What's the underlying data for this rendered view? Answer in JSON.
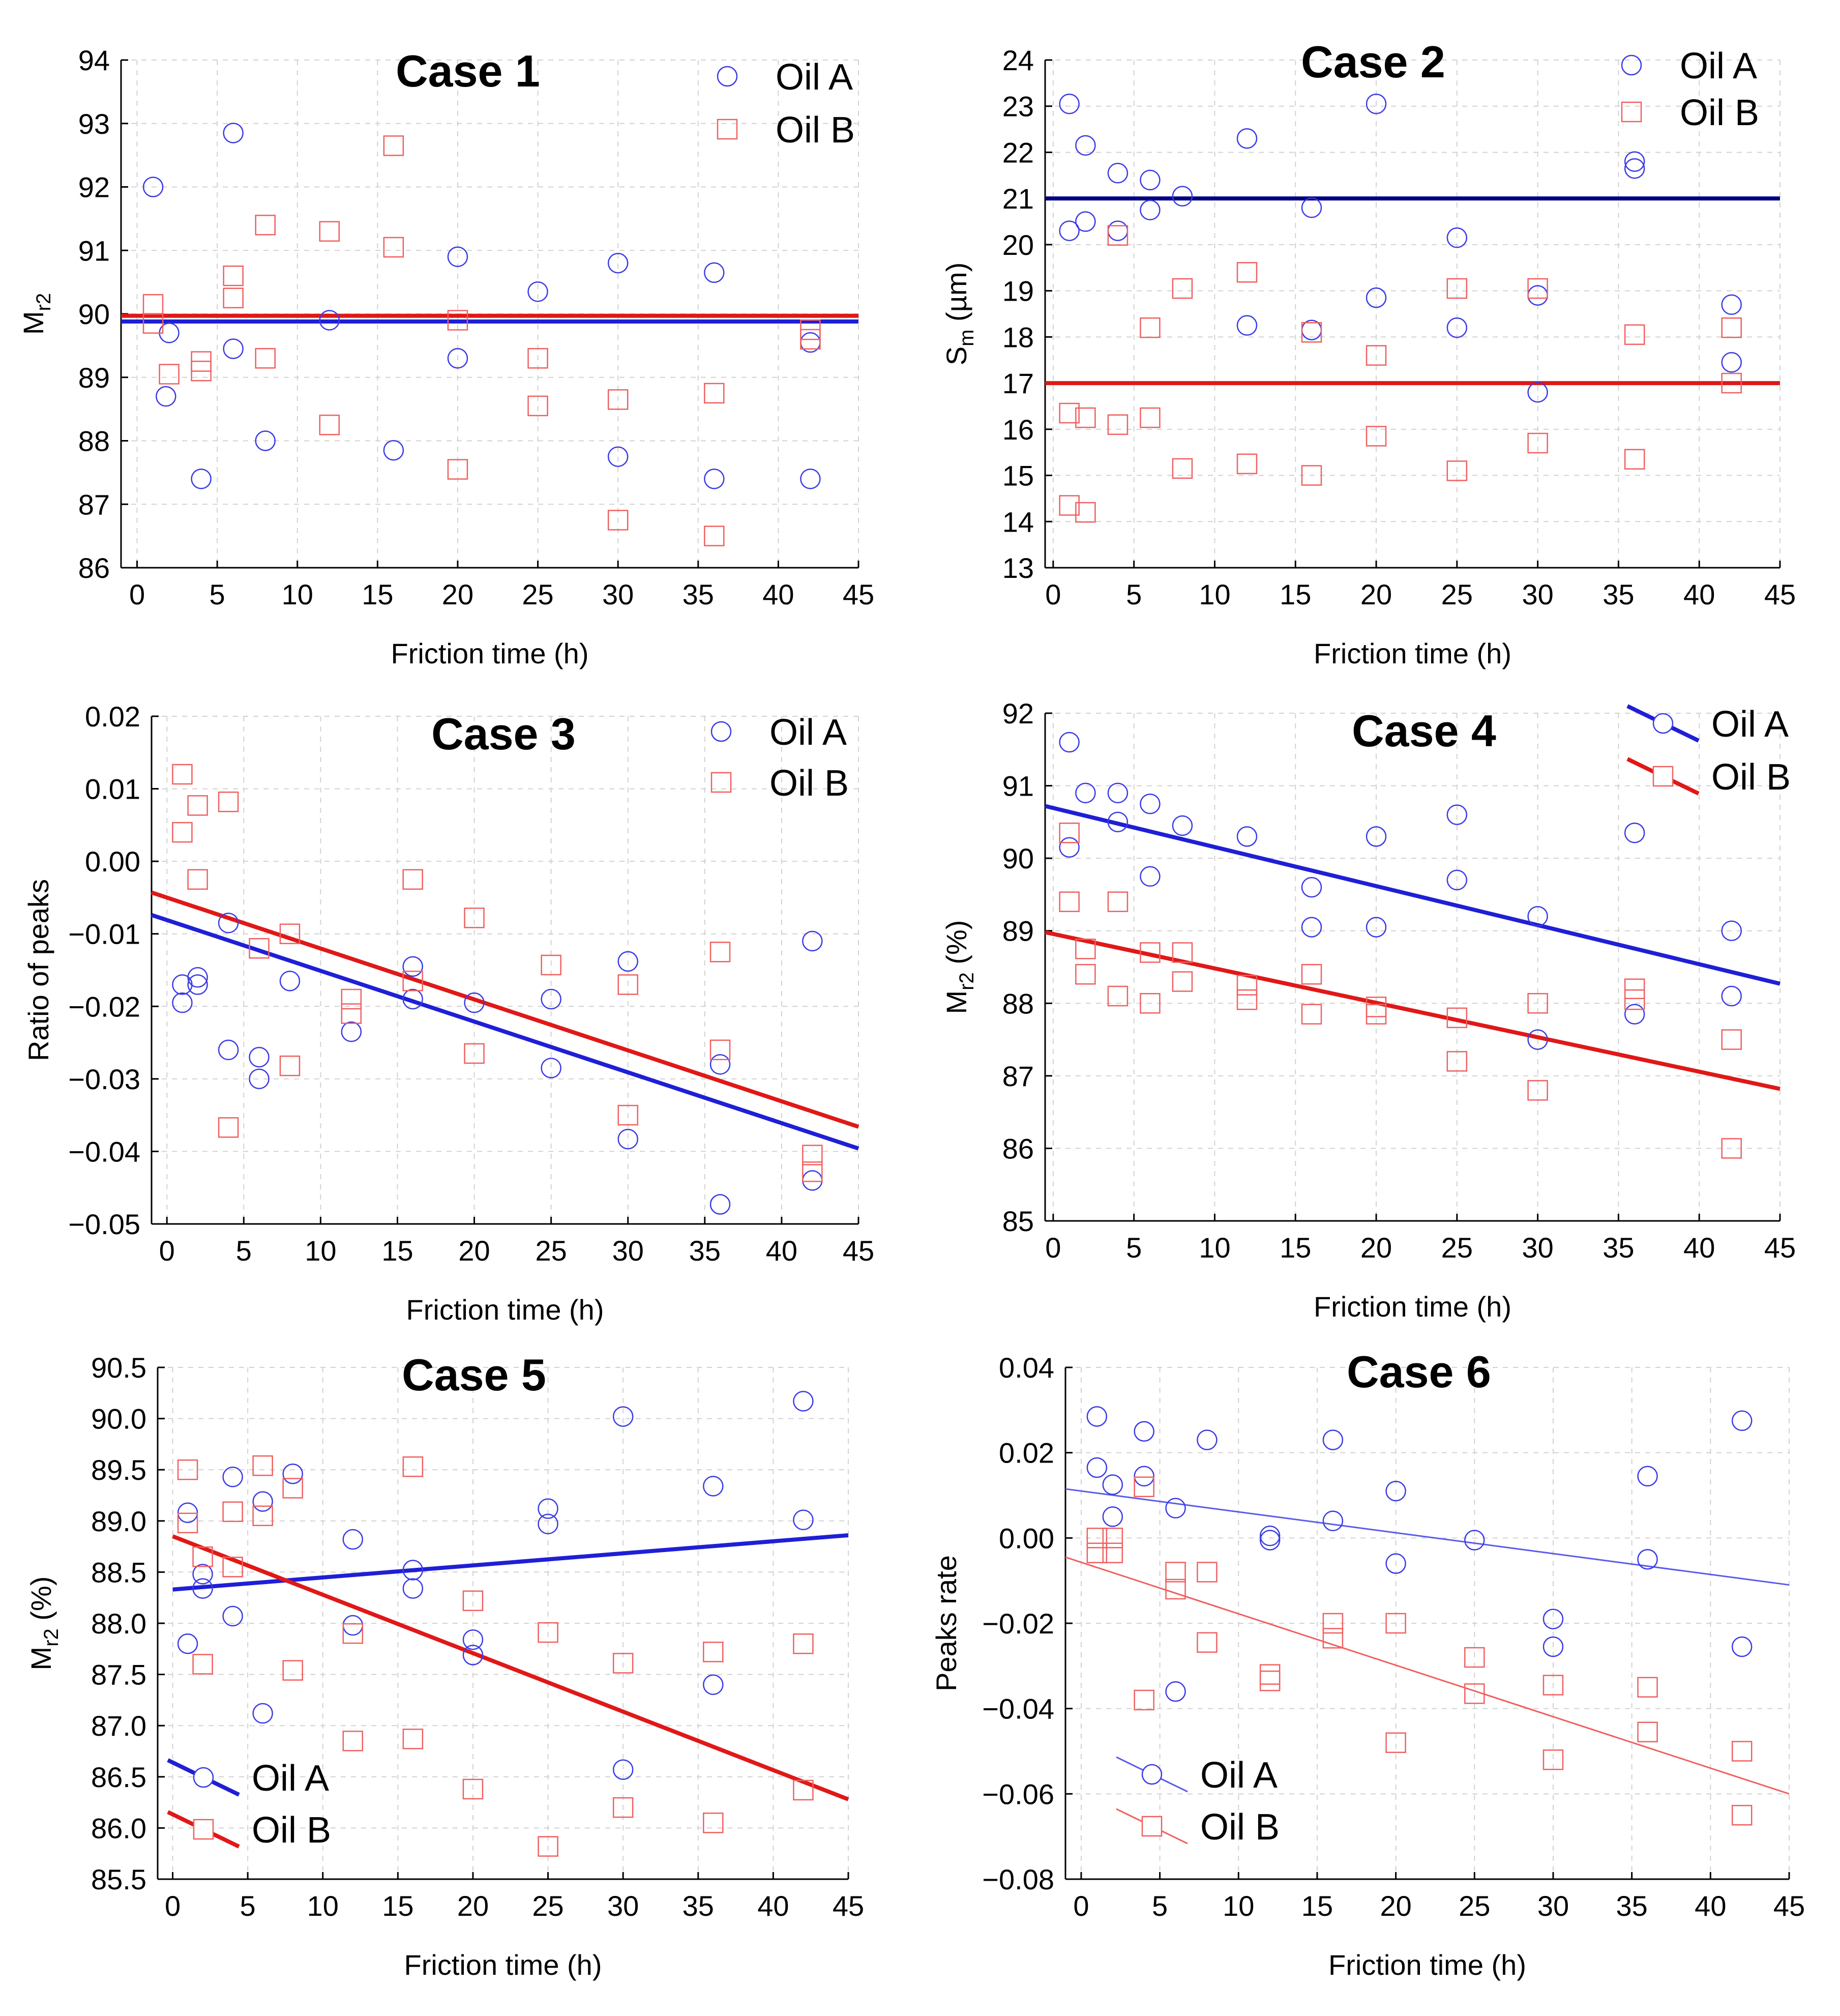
{
  "figure": {
    "panel_count": 6
  },
  "chart_data": [
    {
      "type": "scatter",
      "title": "Case 1",
      "xlabel": "Friction time (h)",
      "ylabel": "M",
      "ylabel_sub": "r2",
      "ylabel_suffix": "",
      "xlim": [
        -1,
        45
      ],
      "ylim": [
        86,
        94
      ],
      "xticks": [
        0,
        5,
        10,
        15,
        20,
        25,
        30,
        35,
        40,
        45
      ],
      "yticks": [
        86,
        87,
        88,
        89,
        90,
        91,
        92,
        93,
        94
      ],
      "ytick_decimals": 0,
      "legend_position": "top-right",
      "legend_lines": false,
      "series": [
        {
          "name": "Oil A",
          "marker": "circle",
          "color": "#3b3be6",
          "x": [
            1,
            2,
            1.8,
            4,
            6,
            6,
            8,
            12,
            16,
            20,
            20,
            25,
            30,
            30,
            36,
            36,
            42,
            42
          ],
          "y": [
            92,
            89.7,
            88.7,
            87.4,
            92.85,
            89.45,
            88,
            89.9,
            87.85,
            90.9,
            89.3,
            90.35,
            90.8,
            87.75,
            90.65,
            87.4,
            89.55,
            87.4
          ]
        },
        {
          "name": "Oil B",
          "marker": "square",
          "color": "#f06060",
          "x": [
            1,
            1,
            2,
            4,
            4,
            6,
            6,
            8,
            8,
            12,
            12,
            16,
            16,
            20,
            20,
            25,
            25,
            30,
            30,
            36,
            36,
            42,
            42
          ],
          "y": [
            90.15,
            89.85,
            89.05,
            89.25,
            89.1,
            90.6,
            90.25,
            91.4,
            89.3,
            91.3,
            88.25,
            92.65,
            91.05,
            89.9,
            87.55,
            89.3,
            88.55,
            88.65,
            86.75,
            88.75,
            86.5,
            89.75,
            89.6
          ]
        }
      ],
      "lines": [
        {
          "name": "Oil A fit",
          "color": "#1f1fd6",
          "width": 8,
          "x": [
            -1,
            45
          ],
          "y": [
            89.88,
            89.88
          ]
        },
        {
          "name": "Oil B fit",
          "color": "#e01818",
          "width": 8,
          "x": [
            -1,
            45
          ],
          "y": [
            89.97,
            89.97
          ]
        }
      ]
    },
    {
      "type": "scatter",
      "title": "Case 2",
      "xlabel": "Friction time (h)",
      "ylabel": "S",
      "ylabel_sub": "m",
      "ylabel_suffix": " (µm)",
      "xlim": [
        -0.5,
        45
      ],
      "ylim": [
        13,
        24
      ],
      "xticks": [
        0,
        5,
        10,
        15,
        20,
        25,
        30,
        35,
        40,
        45
      ],
      "yticks": [
        13,
        14,
        15,
        16,
        17,
        18,
        19,
        20,
        21,
        22,
        23,
        24
      ],
      "ytick_decimals": 0,
      "legend_position": "top-right",
      "legend_lines": false,
      "series": [
        {
          "name": "Oil A",
          "marker": "circle",
          "color": "#3b3be6",
          "x": [
            1,
            1,
            2,
            2,
            4,
            4,
            6,
            6,
            8,
            12,
            12,
            16,
            16,
            20,
            20,
            25,
            25,
            30,
            30,
            36,
            36,
            42,
            42
          ],
          "y": [
            23.05,
            20.3,
            22.15,
            20.5,
            21.55,
            20.3,
            21.4,
            20.75,
            21.05,
            22.3,
            18.25,
            20.8,
            18.15,
            23.05,
            18.85,
            20.15,
            18.2,
            18.9,
            16.8,
            21.8,
            21.65,
            18.7,
            17.45
          ]
        },
        {
          "name": "Oil B",
          "marker": "square",
          "color": "#f06060",
          "x": [
            1,
            1,
            2,
            2,
            4,
            4,
            6,
            6,
            8,
            8,
            12,
            12,
            16,
            16,
            20,
            20,
            25,
            25,
            30,
            30,
            36,
            36,
            42,
            42
          ],
          "y": [
            16.35,
            14.35,
            16.25,
            14.2,
            20.2,
            16.1,
            18.2,
            16.25,
            19.05,
            15.15,
            19.4,
            15.25,
            18.1,
            15.0,
            17.6,
            15.85,
            19.05,
            15.1,
            19.05,
            15.7,
            18.05,
            15.35,
            18.2,
            17.0
          ]
        }
      ],
      "lines": [
        {
          "name": "Oil A fit",
          "color": "#000080",
          "width": 8,
          "x": [
            -0.5,
            45
          ],
          "y": [
            21.0,
            21.0
          ]
        },
        {
          "name": "Oil B fit",
          "color": "#e01818",
          "width": 8,
          "x": [
            -0.5,
            45
          ],
          "y": [
            17.0,
            17.0
          ]
        }
      ]
    },
    {
      "type": "scatter",
      "title": "Case 3",
      "xlabel": "Friction time (h)",
      "ylabel": "Ratio of peaks",
      "ylabel_sub": "",
      "ylabel_suffix": "",
      "xlim": [
        -1,
        45
      ],
      "ylim": [
        -0.05,
        0.02
      ],
      "xticks": [
        0,
        5,
        10,
        15,
        20,
        25,
        30,
        35,
        40,
        45
      ],
      "yticks": [
        -0.05,
        -0.04,
        -0.03,
        -0.02,
        -0.01,
        0.0,
        0.01,
        0.02
      ],
      "ytick_decimals": 2,
      "legend_position": "top-right",
      "legend_lines": false,
      "series": [
        {
          "name": "Oil A",
          "marker": "circle",
          "color": "#3b3be6",
          "x": [
            1,
            1,
            2,
            2,
            4,
            4,
            6,
            6,
            8,
            12,
            16,
            16,
            20,
            25,
            25,
            30,
            30,
            36,
            36,
            42,
            42
          ],
          "y": [
            -0.017,
            -0.0195,
            -0.016,
            -0.017,
            -0.0085,
            -0.026,
            -0.027,
            -0.03,
            -0.0165,
            -0.0235,
            -0.0145,
            -0.019,
            -0.0195,
            -0.019,
            -0.0285,
            -0.0138,
            -0.0383,
            -0.028,
            -0.0473,
            -0.011,
            -0.044
          ]
        },
        {
          "name": "Oil B",
          "marker": "square",
          "color": "#f06060",
          "x": [
            1,
            1,
            2,
            2,
            4,
            4,
            6,
            8,
            8,
            12,
            12,
            16,
            16,
            20,
            20,
            25,
            30,
            30,
            36,
            36,
            42,
            42
          ],
          "y": [
            0.012,
            0.004,
            0.0077,
            -0.0025,
            0.0082,
            -0.0367,
            -0.012,
            -0.01,
            -0.0282,
            -0.019,
            -0.021,
            -0.0025,
            -0.0165,
            -0.0078,
            -0.0265,
            -0.0143,
            -0.035,
            -0.017,
            -0.0125,
            -0.026,
            -0.0405,
            -0.0428
          ]
        }
      ],
      "lines": [
        {
          "name": "Oil A fit",
          "color": "#1f1fd6",
          "width": 8,
          "x": [
            -1,
            45
          ],
          "y": [
            -0.0074,
            -0.0396
          ]
        },
        {
          "name": "Oil B fit",
          "color": "#e01818",
          "width": 8,
          "x": [
            -1,
            45
          ],
          "y": [
            -0.0043,
            -0.0366
          ]
        }
      ]
    },
    {
      "type": "scatter",
      "title": "Case 4",
      "xlabel": "Friction time (h)",
      "ylabel": "M",
      "ylabel_sub": "r2",
      "ylabel_suffix": " (%)",
      "xlim": [
        -0.5,
        45
      ],
      "ylim": [
        85,
        92
      ],
      "xticks": [
        0,
        5,
        10,
        15,
        20,
        25,
        30,
        35,
        40,
        45
      ],
      "yticks": [
        85,
        86,
        87,
        88,
        89,
        90,
        91,
        92
      ],
      "ytick_decimals": 0,
      "legend_position": "top-right",
      "legend_lines": true,
      "series": [
        {
          "name": "Oil A",
          "marker": "circle",
          "color": "#3b3be6",
          "x": [
            1,
            1,
            2,
            4,
            4,
            6,
            6,
            8,
            12,
            16,
            16,
            20,
            20,
            25,
            25,
            30,
            30,
            36,
            36,
            42,
            42
          ],
          "y": [
            91.6,
            90.15,
            90.9,
            90.9,
            90.5,
            90.75,
            89.75,
            90.45,
            90.3,
            89.6,
            89.05,
            90.3,
            89.05,
            90.6,
            89.7,
            89.2,
            87.5,
            90.35,
            87.85,
            89.0,
            88.1
          ]
        },
        {
          "name": "Oil B",
          "marker": "square",
          "color": "#f06060",
          "x": [
            1,
            1,
            2,
            2,
            4,
            4,
            6,
            6,
            8,
            8,
            12,
            12,
            16,
            16,
            20,
            20,
            25,
            25,
            30,
            30,
            36,
            36,
            42,
            42
          ],
          "y": [
            90.35,
            89.4,
            88.75,
            88.4,
            89.4,
            88.1,
            88.7,
            88.0,
            88.7,
            88.3,
            88.25,
            88.05,
            88.4,
            87.85,
            87.95,
            87.85,
            87.8,
            87.2,
            88.0,
            86.8,
            88.2,
            88.05,
            87.5,
            86.0
          ]
        }
      ],
      "lines": [
        {
          "name": "Oil A fit",
          "color": "#1f1fd6",
          "width": 8,
          "x": [
            -0.5,
            45
          ],
          "y": [
            90.72,
            88.27
          ]
        },
        {
          "name": "Oil B fit",
          "color": "#e01818",
          "width": 8,
          "x": [
            -0.5,
            45
          ],
          "y": [
            88.98,
            86.82
          ]
        }
      ]
    },
    {
      "type": "scatter",
      "title": "Case 5",
      "xlabel": "Friction time (h)",
      "ylabel": "M",
      "ylabel_sub": "r2",
      "ylabel_suffix": " (%)",
      "xlim": [
        -1,
        45
      ],
      "ylim": [
        85.5,
        90.5
      ],
      "xticks": [
        0,
        5,
        10,
        15,
        20,
        25,
        30,
        35,
        40,
        45
      ],
      "yticks": [
        85.5,
        86.0,
        86.5,
        87.0,
        87.5,
        88.0,
        88.5,
        89.0,
        89.5,
        90.0,
        90.5
      ],
      "ytick_decimals": 1,
      "legend_position": "bottom-left",
      "legend_lines": true,
      "series": [
        {
          "name": "Oil A",
          "marker": "circle",
          "color": "#3b3be6",
          "x": [
            1,
            1,
            2,
            2,
            4,
            4,
            6,
            6,
            8,
            12,
            12,
            16,
            16,
            20,
            20,
            25,
            25,
            30,
            30,
            36,
            36,
            42,
            42
          ],
          "y": [
            89.08,
            87.8,
            88.48,
            88.34,
            89.43,
            88.07,
            89.19,
            87.12,
            89.46,
            88.82,
            87.98,
            88.52,
            88.34,
            87.84,
            87.69,
            89.12,
            88.97,
            90.02,
            86.57,
            89.34,
            87.4,
            90.17,
            89.01
          ]
        },
        {
          "name": "Oil B",
          "marker": "square",
          "color": "#f06060",
          "x": [
            1,
            1,
            2,
            2,
            4,
            4,
            6,
            6,
            8,
            8,
            12,
            12,
            16,
            16,
            20,
            20,
            25,
            25,
            30,
            30,
            36,
            36,
            42,
            42
          ],
          "y": [
            89.5,
            88.98,
            88.65,
            87.6,
            89.09,
            88.55,
            89.54,
            89.05,
            89.32,
            87.54,
            87.9,
            86.85,
            89.53,
            86.87,
            88.22,
            86.38,
            87.91,
            85.82,
            87.61,
            86.2,
            87.72,
            86.05,
            87.8,
            86.37
          ]
        }
      ],
      "lines": [
        {
          "name": "Oil A fit",
          "color": "#1f1fd6",
          "width": 8,
          "x": [
            0,
            45
          ],
          "y": [
            88.33,
            88.86
          ]
        },
        {
          "name": "Oil B fit",
          "color": "#e01818",
          "width": 8,
          "x": [
            0,
            45
          ],
          "y": [
            88.85,
            86.28
          ]
        }
      ]
    },
    {
      "type": "scatter",
      "title": "Case 6",
      "xlabel": "Friction time (h)",
      "ylabel": "Peaks rate",
      "ylabel_sub": "",
      "ylabel_suffix": "",
      "xlim": [
        -1,
        45
      ],
      "ylim": [
        -0.08,
        0.04
      ],
      "xticks": [
        0,
        5,
        10,
        15,
        20,
        25,
        30,
        35,
        40,
        45
      ],
      "yticks": [
        -0.08,
        -0.06,
        -0.04,
        -0.02,
        0.0,
        0.02,
        0.04
      ],
      "ytick_decimals": 2,
      "legend_position": "bottom-left",
      "legend_lines": true,
      "series": [
        {
          "name": "Oil A",
          "marker": "circle",
          "color": "#3b3be6",
          "x": [
            1,
            1,
            2,
            2,
            4,
            4,
            6,
            6,
            8,
            12,
            12,
            16,
            16,
            20,
            20,
            25,
            30,
            30,
            36,
            36,
            42,
            42
          ],
          "y": [
            0.0285,
            0.0165,
            0.0125,
            0.005,
            0.025,
            0.0145,
            0.007,
            -0.036,
            0.023,
            0.0005,
            -0.0005,
            0.023,
            0.004,
            0.011,
            -0.006,
            -0.0005,
            -0.019,
            -0.0255,
            0.0145,
            -0.005,
            0.0275,
            -0.0255
          ]
        },
        {
          "name": "Oil B",
          "marker": "square",
          "color": "#f06060",
          "x": [
            1,
            1,
            2,
            2,
            4,
            4,
            6,
            6,
            8,
            8,
            12,
            12,
            16,
            16,
            20,
            20,
            25,
            25,
            30,
            30,
            36,
            36,
            42,
            42
          ],
          "y": [
            0.0,
            -0.0035,
            0.0,
            -0.0035,
            0.012,
            -0.038,
            -0.008,
            -0.012,
            -0.008,
            -0.0245,
            -0.032,
            -0.0335,
            -0.02,
            -0.0235,
            -0.02,
            -0.048,
            -0.028,
            -0.0365,
            -0.0345,
            -0.052,
            -0.035,
            -0.0455,
            -0.05,
            -0.065
          ]
        }
      ],
      "lines": [
        {
          "name": "Oil A fit",
          "color": "#5a5aee",
          "width": 3,
          "x": [
            -1,
            45
          ],
          "y": [
            0.0115,
            -0.011
          ]
        },
        {
          "name": "Oil B fit",
          "color": "#f06060",
          "width": 3,
          "x": [
            -1,
            45
          ],
          "y": [
            -0.0045,
            -0.06
          ]
        }
      ]
    }
  ]
}
